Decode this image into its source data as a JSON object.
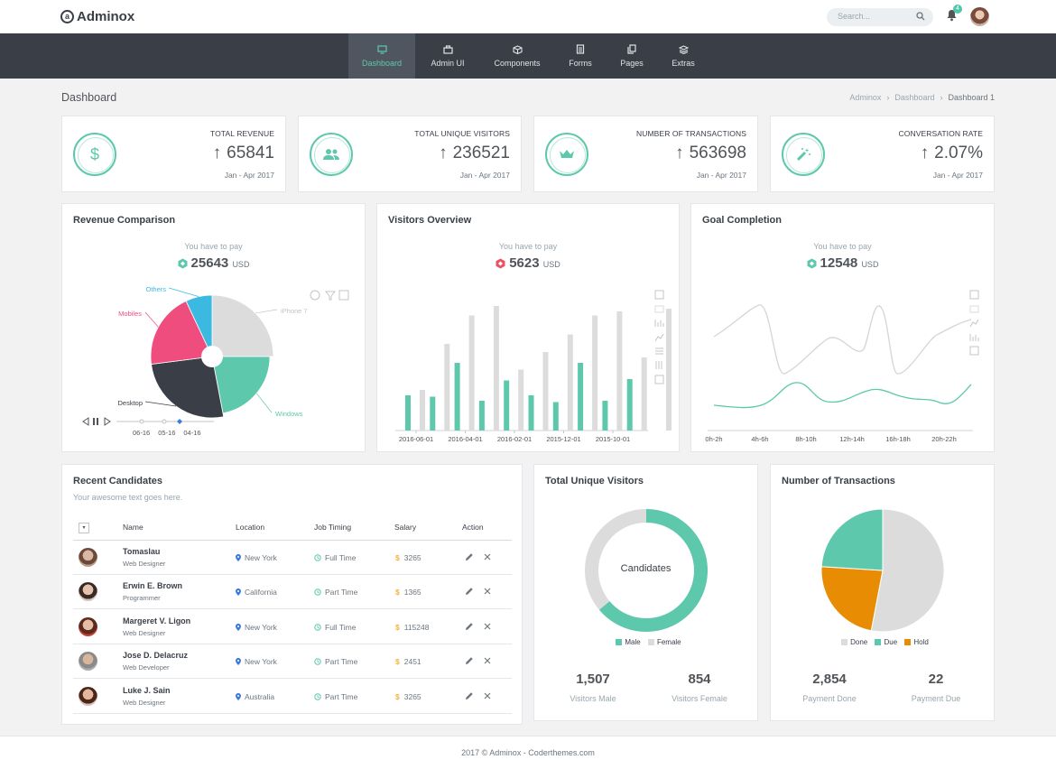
{
  "brand": {
    "logo_letter": "a",
    "name": "Adminox"
  },
  "search": {
    "placeholder": "Search..."
  },
  "notifications": {
    "count": "4"
  },
  "nav": {
    "items": [
      {
        "label": "Dashboard",
        "icon": "monitor-icon"
      },
      {
        "label": "Admin UI",
        "icon": "briefcase-icon"
      },
      {
        "label": "Components",
        "icon": "cube-icon"
      },
      {
        "label": "Forms",
        "icon": "document-icon"
      },
      {
        "label": "Pages",
        "icon": "pages-icon"
      },
      {
        "label": "Extras",
        "icon": "layers-icon"
      }
    ],
    "active": "Dashboard"
  },
  "page": {
    "title": "Dashboard",
    "breadcrumb": [
      "Adminox",
      "Dashboard",
      "Dashboard 1"
    ]
  },
  "stats": [
    {
      "label": "TOTAL REVENUE",
      "value": "65841",
      "period": "Jan - Apr 2017",
      "icon": "dollar-icon"
    },
    {
      "label": "TOTAL UNIQUE VISITORS",
      "value": "236521",
      "period": "Jan - Apr 2017",
      "icon": "users-icon"
    },
    {
      "label": "NUMBER OF TRANSACTIONS",
      "value": "563698",
      "period": "Jan - Apr 2017",
      "icon": "crown-icon"
    },
    {
      "label": "CONVERSATION RATE",
      "value": "2.07%",
      "period": "Jan - Apr 2017",
      "icon": "magic-wand-icon"
    }
  ],
  "revenue": {
    "title": "Revenue Comparison",
    "pay_label": "You have to pay",
    "amount": "25643",
    "currency": "USD",
    "timeline": [
      "06-16",
      "05-16",
      "04-16"
    ]
  },
  "visitors": {
    "title": "Visitors Overview",
    "pay_label": "You have to pay",
    "amount": "5623",
    "currency": "USD"
  },
  "goal": {
    "title": "Goal Completion",
    "pay_label": "You have to pay",
    "amount": "12548",
    "currency": "USD"
  },
  "colors": {
    "teal": "#5ec8ac",
    "grey": "#dcdcdc",
    "dark": "#3a3f47",
    "pink": "#ef4d7e",
    "blue": "#3bb9e0",
    "orange": "#e88c04",
    "red": "#ec5261"
  },
  "chart_data": [
    {
      "type": "pie",
      "title": "Revenue Comparison",
      "categories": [
        "iPhone 7",
        "Windows",
        "Desktop",
        "Mobiles",
        "Others"
      ],
      "values": [
        25,
        22,
        26,
        20,
        7
      ]
    },
    {
      "type": "bar",
      "title": "Visitors Overview",
      "tick_labels": [
        "2016-06-01",
        "2016-04-01",
        "2016-02-01",
        "2015-12-01",
        "2015-10-01"
      ],
      "series": [
        {
          "values": [
            30,
            64,
            85,
            92,
            45,
            58,
            71,
            85,
            88,
            54,
            90
          ]
        },
        {
          "values": [
            26,
            25,
            50,
            22,
            37,
            26,
            21,
            50,
            22,
            38,
            0
          ]
        }
      ]
    },
    {
      "type": "line",
      "title": "Goal Completion",
      "categories": [
        "0h-2h",
        "4h-6h",
        "8h-10h",
        "12h-14h",
        "16h-18h",
        "20h-22h"
      ]
    }
  ],
  "candidates": {
    "title": "Recent Candidates",
    "subtitle": "Your awesome text goes here.",
    "columns": [
      "Name",
      "Location",
      "Job Timing",
      "Salary",
      "Action"
    ],
    "rows": [
      {
        "name": "Tomaslau",
        "role": "Web Designer",
        "location": "New York",
        "timing": "Full Time",
        "salary": "3265"
      },
      {
        "name": "Erwin E. Brown",
        "role": "Programmer",
        "location": "California",
        "timing": "Part Time",
        "salary": "1365"
      },
      {
        "name": "Margeret V. Ligon",
        "role": "Web Designer",
        "location": "New York",
        "timing": "Full Time",
        "salary": "115248"
      },
      {
        "name": "Jose D. Delacruz",
        "role": "Web Developer",
        "location": "New York",
        "timing": "Part Time",
        "salary": "2451"
      },
      {
        "name": "Luke J. Sain",
        "role": "Web Designer",
        "location": "Australia",
        "timing": "Part Time",
        "salary": "3265"
      }
    ]
  },
  "unique_visitors": {
    "title": "Total Unique Visitors",
    "center_label": "Candidates",
    "legend": [
      "Male",
      "Female"
    ],
    "stats": [
      {
        "value": "1,507",
        "label": "Visitors Male"
      },
      {
        "value": "854",
        "label": "Visitors Female"
      }
    ]
  },
  "transactions": {
    "title": "Number of Transactions",
    "legend": [
      "Done",
      "Due",
      "Hold"
    ],
    "stats": [
      {
        "value": "2,854",
        "label": "Payment Done"
      },
      {
        "value": "22",
        "label": "Payment Due"
      }
    ]
  },
  "footer": {
    "text": "2017 © Adminox - Coderthemes.com"
  }
}
